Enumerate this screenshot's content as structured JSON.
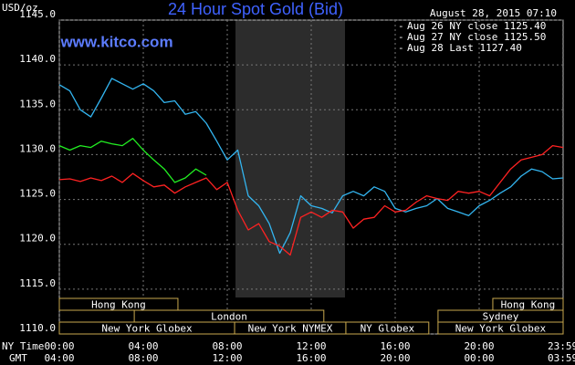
{
  "chart_data": {
    "type": "line",
    "title": "24 Hour Spot Gold (Bid)",
    "subtitle": "www.kitco.com",
    "timestamp": "August 28, 2015 07:10",
    "y_label": "USD/oz",
    "x_label": "NY Time",
    "x2_label": "GMT",
    "legend": "upper right",
    "grid": true,
    "xlim": [
      0,
      24
    ],
    "ylim": [
      1110,
      1145
    ],
    "yticks": [
      {
        "value": 1110,
        "label": "1110.0"
      },
      {
        "value": 1115,
        "label": "1115.0"
      },
      {
        "value": 1120,
        "label": "1120.0"
      },
      {
        "value": 1125,
        "label": "1125.0"
      },
      {
        "value": 1130,
        "label": "1130.0"
      },
      {
        "value": 1135,
        "label": "1135.0"
      },
      {
        "value": 1140,
        "label": "1140.0"
      },
      {
        "value": 1145,
        "label": "1145.0"
      }
    ],
    "xticks": [
      {
        "value": 0,
        "label": "00:00"
      },
      {
        "value": 4,
        "label": "04:00"
      },
      {
        "value": 8,
        "label": "08:00"
      },
      {
        "value": 12,
        "label": "12:00"
      },
      {
        "value": 16,
        "label": "16:00"
      },
      {
        "value": 20,
        "label": "20:00"
      },
      {
        "value": 23.983,
        "label": "23:59"
      }
    ],
    "x2tick_labels": [
      "04:00",
      "08:00",
      "12:00",
      "16:00",
      "20:00",
      "00:00",
      "03:59"
    ],
    "session_rows": [
      [
        {
          "label": "Hong Kong",
          "start": 0,
          "end": 5.65
        },
        {
          "label": "Hong Kong",
          "start": 20.65,
          "end": 24
        }
      ],
      [
        {
          "label": "London",
          "start": 3.57,
          "end": 12.6
        },
        {
          "label": "Sydney",
          "start": 18.04,
          "end": 24
        }
      ],
      [
        {
          "label": "New York Globex",
          "start": 0,
          "end": 8.35
        },
        {
          "label": "New York NYMEX",
          "start": 8.35,
          "end": 13.65
        },
        {
          "label": "NY Globex",
          "start": 13.65,
          "end": 17.6
        },
        {
          "label": "New York Globex",
          "start": 18.04,
          "end": 24
        }
      ]
    ],
    "x": [
      0,
      0.5,
      1,
      1.5,
      2,
      2.5,
      3,
      3.5,
      4,
      4.5,
      5,
      5.5,
      6,
      6.5,
      7,
      7.5,
      8,
      8.5,
      9,
      9.5,
      10,
      10.5,
      11,
      11.5,
      12,
      12.5,
      13,
      13.5,
      14,
      14.5,
      15,
      15.5,
      16,
      16.5,
      17,
      17.5,
      18,
      18.5,
      19,
      19.5,
      20,
      20.5,
      21,
      21.5,
      22,
      22.5,
      23,
      23.5,
      24
    ],
    "series": [
      {
        "name": "Aug 26 NY close 1125.40",
        "color": "#33b5f0",
        "values": [
          1137.8,
          1137.1,
          1135.0,
          1134.2,
          1136.3,
          1138.5,
          1137.9,
          1137.3,
          1137.9,
          1137.1,
          1135.8,
          1136.0,
          1134.5,
          1134.8,
          1133.5,
          1131.5,
          1129.4,
          1130.5,
          1125.4,
          1124.3,
          1122.3,
          1119.0,
          1121.3,
          1125.4,
          1124.3,
          1124.0,
          1123.5,
          1125.4,
          1125.9,
          1125.4,
          1126.4,
          1125.9,
          1124.0,
          1123.6,
          1124.0,
          1124.3,
          1125.1,
          1124.0,
          1123.6,
          1123.2,
          1124.3,
          1124.9,
          1125.7,
          1126.4,
          1127.6,
          1128.4,
          1128.1,
          1127.3,
          1127.4
        ]
      },
      {
        "name": "Aug 27 NY close 1125.50",
        "color": "#ff2222",
        "values": [
          1127.2,
          1127.3,
          1127.0,
          1127.4,
          1127.1,
          1127.6,
          1126.9,
          1127.9,
          1127.1,
          1126.4,
          1126.6,
          1125.7,
          1126.4,
          1126.9,
          1127.4,
          1126.1,
          1126.9,
          1123.8,
          1121.6,
          1122.3,
          1120.3,
          1119.8,
          1118.8,
          1123.0,
          1123.6,
          1123.0,
          1123.8,
          1123.6,
          1121.8,
          1122.8,
          1123.0,
          1124.3,
          1123.6,
          1123.8,
          1124.7,
          1125.4,
          1125.1,
          1124.9,
          1125.9,
          1125.7,
          1125.9,
          1125.4,
          1126.9,
          1128.4,
          1129.4,
          1129.7,
          1130.0,
          1131.0,
          1130.8
        ]
      },
      {
        "name": "Aug 28 Last 1127.40",
        "color": "#22ee22",
        "values": [
          1131.0,
          1130.5,
          1131.0,
          1130.8,
          1131.5,
          1131.2,
          1131.0,
          1131.8,
          1130.5,
          1129.4,
          1128.4,
          1126.9,
          1127.4,
          1128.4,
          1127.7,
          null,
          null,
          null,
          null,
          null,
          null,
          null,
          null,
          null,
          null,
          null,
          null,
          null,
          null,
          null,
          null,
          null,
          null,
          null,
          null,
          null,
          null,
          null,
          null,
          null,
          null,
          null,
          null,
          null,
          null,
          null,
          null,
          null,
          null
        ]
      }
    ]
  }
}
